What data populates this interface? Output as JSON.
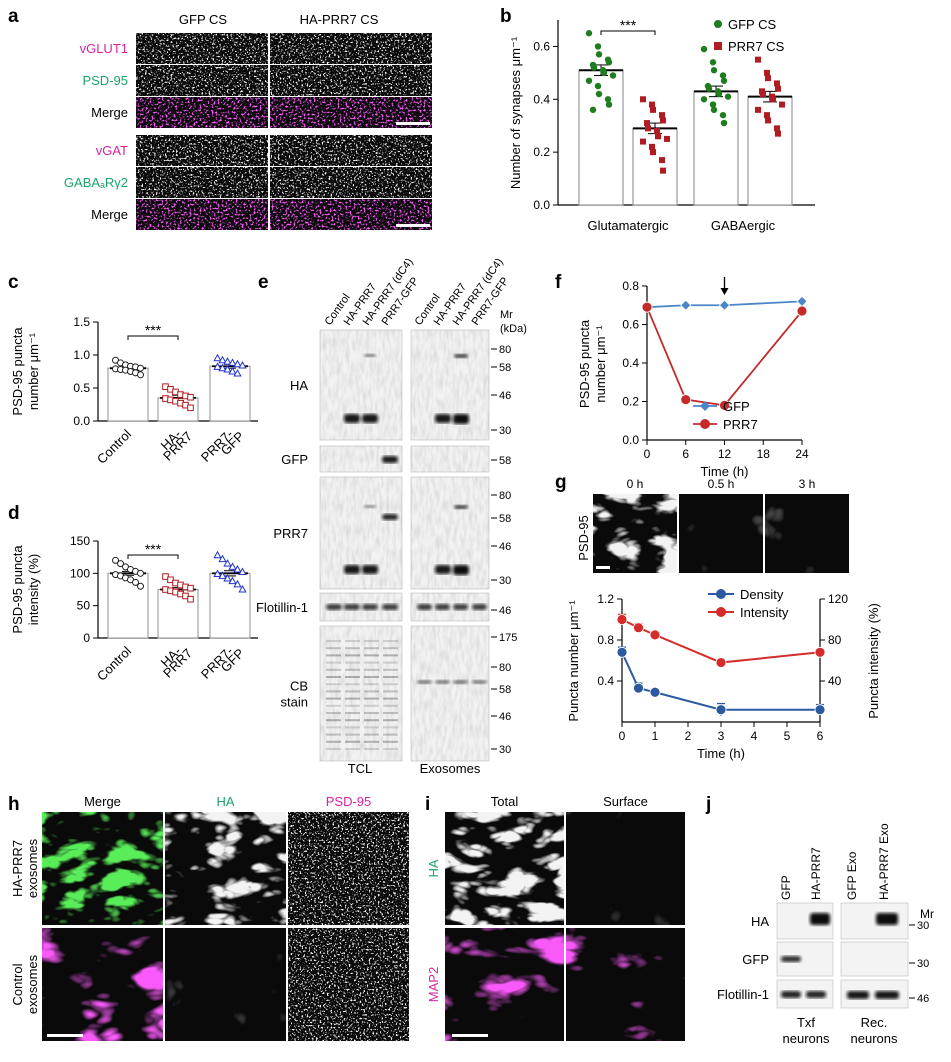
{
  "panels": {
    "a": {
      "letter": "a",
      "columns": [
        "GFP CS",
        "HA-PRR7 CS"
      ],
      "rows": [
        {
          "label": "vGLUT1",
          "color": "#d6249f"
        },
        {
          "label": "PSD-95",
          "color": "#1aa36b"
        },
        {
          "label": "Merge",
          "color": "#000000"
        },
        {
          "label": "vGAT",
          "color": "#d6249f"
        },
        {
          "label": "GABAₐRγ2",
          "color": "#1aa36b"
        },
        {
          "label": "Merge",
          "color": "#000000"
        }
      ]
    },
    "b": {
      "letter": "b",
      "significance": "***",
      "legend": [
        {
          "name": "GFP CS",
          "color": "#1e7d1e",
          "marker": "circle"
        },
        {
          "name": "PRR7 CS",
          "color": "#b01c22",
          "marker": "square"
        }
      ]
    },
    "c": {
      "letter": "c",
      "significance": "***"
    },
    "d": {
      "letter": "d",
      "significance": "***"
    },
    "e": {
      "letter": "e",
      "lanes_tcl": [
        "Control",
        "HA-PRR7",
        "HA-PRR7 (dC4)",
        "PRR7-GFP"
      ],
      "lanes_exo": [
        "Control",
        "HA-PRR7",
        "HA-PRR7 (dC4)",
        "PRR7-GFP"
      ],
      "mr_label": "Mr",
      "kda_label": "(kDa)",
      "blots": [
        {
          "label": "HA",
          "markers": [
            "80",
            "58",
            "46",
            "30"
          ]
        },
        {
          "label": "GFP",
          "markers": [
            "58"
          ]
        },
        {
          "label": "PRR7",
          "markers": [
            "80",
            "58",
            "46",
            "30"
          ]
        },
        {
          "label": "Flotillin-1",
          "markers": [
            "46"
          ]
        },
        {
          "label": "CB",
          "label2": "stain",
          "markers": [
            "175",
            "80",
            "58",
            "46",
            "30"
          ]
        }
      ],
      "footer": [
        "TCL",
        "Exosomes"
      ]
    },
    "f": {
      "letter": "f",
      "arrow_at_x": 12
    },
    "g": {
      "letter": "g",
      "image_label": "PSD-95",
      "timepoints": [
        "0 h",
        "0.5 h",
        "3 h"
      ]
    },
    "h": {
      "letter": "h",
      "columns": [
        {
          "label": "Merge",
          "color": "#000000"
        },
        {
          "label": "HA",
          "color": "#1aa36b"
        },
        {
          "label": "PSD-95",
          "color": "#d6249f"
        }
      ],
      "rows": [
        {
          "line1": "HA-PRR7",
          "line2": "exosomes"
        },
        {
          "line1": "Control",
          "line2": "exosomes"
        }
      ]
    },
    "i": {
      "letter": "i",
      "columns": [
        "Total",
        "Surface"
      ],
      "rows": [
        {
          "label": "HA",
          "color": "#1aa36b"
        },
        {
          "label": "MAP2",
          "color": "#d6249f"
        }
      ]
    },
    "j": {
      "letter": "j",
      "lanes": [
        "GFP",
        "HA-PRR7",
        "GFP Exo",
        "HA-PRR7 Exo"
      ],
      "mr_label": "Mr",
      "blots": [
        {
          "label": "HA",
          "marker": "30"
        },
        {
          "label": "GFP",
          "marker": "30"
        },
        {
          "label": "Flotillin-1",
          "marker": "46"
        }
      ],
      "footer": [
        {
          "line1": "Txf",
          "line2": "neurons"
        },
        {
          "line1": "Rec.",
          "line2": "neurons"
        }
      ]
    }
  },
  "chart_data": [
    {
      "id": "b",
      "type": "bar",
      "categories": [
        "Glutamatergic",
        "GABAergic"
      ],
      "ylabel": "Number of synapses μm⁻¹",
      "ylim": [
        0,
        0.7
      ],
      "yticks": [
        "0.0",
        "0.2",
        "0.4",
        "0.6"
      ],
      "series": [
        {
          "name": "GFP CS",
          "values": [
            0.51,
            0.43
          ],
          "sem": [
            0.02,
            0.02
          ],
          "points": [
            [
              0.65,
              0.6,
              0.57,
              0.55,
              0.54,
              0.53,
              0.52,
              0.51,
              0.5,
              0.49,
              0.47,
              0.45,
              0.42,
              0.4,
              0.38,
              0.36
            ],
            [
              0.59,
              0.54,
              0.51,
              0.49,
              0.47,
              0.45,
              0.44,
              0.43,
              0.42,
              0.41,
              0.4,
              0.38,
              0.36,
              0.34,
              0.31
            ]
          ]
        },
        {
          "name": "PRR7 CS",
          "values": [
            0.29,
            0.41
          ],
          "sem": [
            0.02,
            0.02
          ],
          "points": [
            [
              0.4,
              0.38,
              0.36,
              0.34,
              0.32,
              0.31,
              0.29,
              0.28,
              0.26,
              0.25,
              0.24,
              0.22,
              0.2,
              0.17,
              0.13
            ],
            [
              0.55,
              0.5,
              0.48,
              0.46,
              0.44,
              0.43,
              0.42,
              0.41,
              0.4,
              0.38,
              0.36,
              0.34,
              0.32,
              0.29,
              0.27
            ]
          ]
        }
      ]
    },
    {
      "id": "c",
      "type": "bar",
      "categories": [
        "Control",
        "HA-\nPRR7",
        "PRR7-\nGFP"
      ],
      "ylabel_lines": [
        "PSD-95 puncta",
        "number μm⁻¹"
      ],
      "ylim": [
        0,
        1.5
      ],
      "yticks": [
        "0.0",
        "0.5",
        "1.0",
        "1.5"
      ],
      "values": [
        0.8,
        0.35,
        0.83
      ],
      "sem": [
        0.03,
        0.04,
        0.03
      ],
      "markers": [
        "circle",
        "square",
        "triangle"
      ],
      "colors": [
        "#222222",
        "#b01c22",
        "#2233cc"
      ],
      "points": [
        [
          0.92,
          0.88,
          0.85,
          0.83,
          0.82,
          0.8,
          0.79,
          0.78,
          0.77,
          0.75,
          0.73,
          0.7
        ],
        [
          0.52,
          0.48,
          0.44,
          0.4,
          0.38,
          0.36,
          0.34,
          0.32,
          0.3,
          0.27,
          0.24,
          0.2
        ],
        [
          0.95,
          0.92,
          0.9,
          0.88,
          0.86,
          0.84,
          0.82,
          0.8,
          0.78,
          0.75,
          0.72
        ]
      ]
    },
    {
      "id": "d",
      "type": "bar",
      "categories": [
        "Control",
        "HA-\nPRR7",
        "PRR7-\nGFP"
      ],
      "ylabel_lines": [
        "PSD-95 puncta",
        "intensity (%)"
      ],
      "ylim": [
        0,
        150
      ],
      "yticks": [
        "0",
        "50",
        "100",
        "150"
      ],
      "values": [
        100,
        75,
        100
      ],
      "sem": [
        3,
        3,
        4
      ],
      "markers": [
        "circle",
        "square",
        "triangle"
      ],
      "colors": [
        "#222222",
        "#b01c22",
        "#2233cc"
      ],
      "points": [
        [
          120,
          115,
          110,
          106,
          103,
          100,
          98,
          96,
          93,
          90,
          86,
          80
        ],
        [
          95,
          90,
          85,
          82,
          79,
          77,
          75,
          73,
          71,
          68,
          65,
          60
        ],
        [
          128,
          122,
          115,
          110,
          106,
          102,
          99,
          96,
          92,
          88,
          83,
          75
        ]
      ]
    },
    {
      "id": "f",
      "type": "line",
      "x": [
        0,
        6,
        12,
        24
      ],
      "xlabel": "Time (h)",
      "ylabel_lines": [
        "PSD-95 puncta",
        "number μm⁻¹"
      ],
      "xticks": [
        "0",
        "6",
        "12",
        "18",
        "24"
      ],
      "yticks": [
        "0.0",
        "0.2",
        "0.4",
        "0.6",
        "0.8"
      ],
      "xlim": [
        0,
        24
      ],
      "ylim": [
        0,
        0.8
      ],
      "series": [
        {
          "name": "GFP",
          "color": "#4a86c8",
          "marker": "diamond",
          "values": [
            0.69,
            0.7,
            0.7,
            0.72
          ]
        },
        {
          "name": "PRR7",
          "color": "#c42a2a",
          "marker": "circle",
          "values": [
            0.69,
            0.21,
            0.18,
            0.67
          ]
        }
      ]
    },
    {
      "id": "g",
      "type": "line",
      "x": [
        0,
        0.5,
        1,
        3,
        6
      ],
      "xlabel": "Time (h)",
      "ylabel": "Puncta number μm⁻¹",
      "ylabel_right": "Puncta intensity (%)",
      "xticks": [
        "0",
        "1",
        "2",
        "3",
        "4",
        "5",
        "6"
      ],
      "yticks": [
        "0.4",
        "0.8",
        "1.2"
      ],
      "yticks_right": [
        "40",
        "80",
        "120"
      ],
      "xlim": [
        0,
        6
      ],
      "ylim": [
        0,
        1.2
      ],
      "ylim_right": [
        0,
        120
      ],
      "series": [
        {
          "name": "Density",
          "color": "#2c5aa0",
          "axis": "left",
          "values": [
            0.68,
            0.33,
            0.29,
            0.12,
            0.12
          ],
          "err": [
            0.05,
            0.05,
            0.03,
            0.06,
            0.05
          ]
        },
        {
          "name": "Intensity",
          "color": "#d62b2b",
          "axis": "right",
          "values": [
            100,
            92,
            85,
            58,
            68
          ],
          "err": [
            5,
            4,
            2,
            1,
            2
          ]
        }
      ]
    }
  ]
}
